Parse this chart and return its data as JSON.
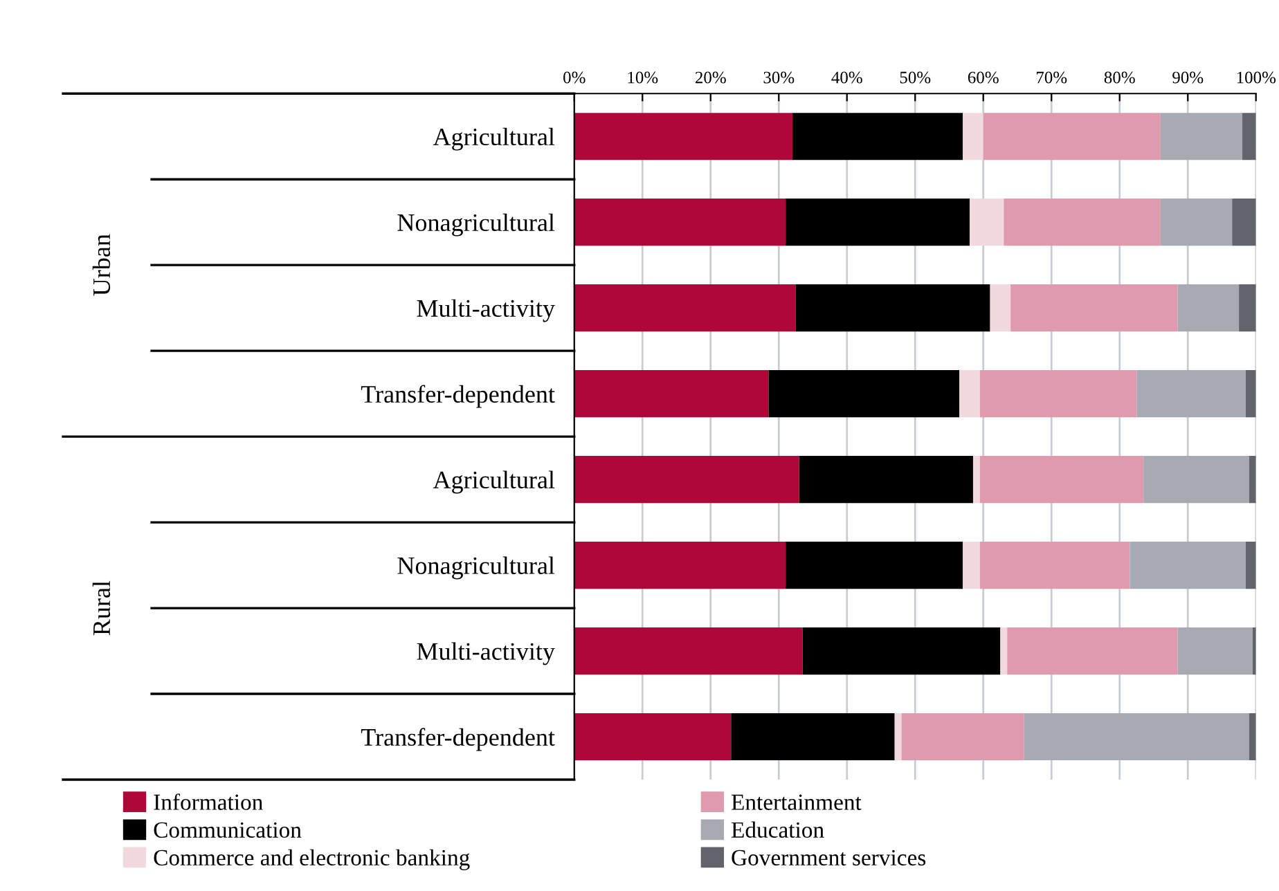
{
  "chart_data": {
    "type": "bar",
    "orientation": "horizontal",
    "stacked": true,
    "categories": [
      "Agricultural",
      "Nonagricultural",
      "Multi-activity",
      "Transfer-dependent",
      "Agricultural",
      "Nonagricultural",
      "Multi-activity",
      "Transfer-dependent"
    ],
    "series": [
      {
        "name": "Information",
        "color": "#b0073a",
        "values": [
          32,
          31,
          32.5,
          28.5,
          33,
          31,
          33.5,
          23
        ]
      },
      {
        "name": "Communication",
        "color": "#000000",
        "values": [
          25,
          27,
          28.5,
          28,
          25.5,
          26,
          29,
          24
        ]
      },
      {
        "name": "Commerce and electronic banking",
        "color": "#f2d9df",
        "values": [
          3,
          5,
          3,
          3,
          1,
          2.5,
          1,
          1
        ]
      },
      {
        "name": "Entertainment",
        "color": "#df9aae",
        "values": [
          26,
          23,
          24.5,
          23,
          24,
          22,
          25,
          18
        ]
      },
      {
        "name": "Education",
        "color": "#a7abb1",
        "values": [
          12,
          10.5,
          9,
          16,
          15.5,
          17,
          11,
          33
        ]
      },
      {
        "name": "Government services",
        "color": "#62646b",
        "values": [
          2,
          3.5,
          2.5,
          1.5,
          1,
          1.5,
          0.5,
          1
        ]
      }
    ],
    "xlim": [
      0,
      100
    ],
    "xticks": [
      {
        "value": 0,
        "label": "0%"
      },
      {
        "value": 10,
        "label": "10%"
      },
      {
        "value": 20,
        "label": "20%"
      },
      {
        "value": 30,
        "label": "30%"
      },
      {
        "value": 40,
        "label": "40%"
      },
      {
        "value": 50,
        "label": "50%"
      },
      {
        "value": 60,
        "label": "60%"
      },
      {
        "value": 70,
        "label": "70%"
      },
      {
        "value": 80,
        "label": "80%"
      },
      {
        "value": 90,
        "label": "90%"
      },
      {
        "value": 100,
        "label": "100%"
      }
    ],
    "grid": "x",
    "legend": "bottom",
    "annotations": [
      "Urban",
      "Rural"
    ]
  }
}
